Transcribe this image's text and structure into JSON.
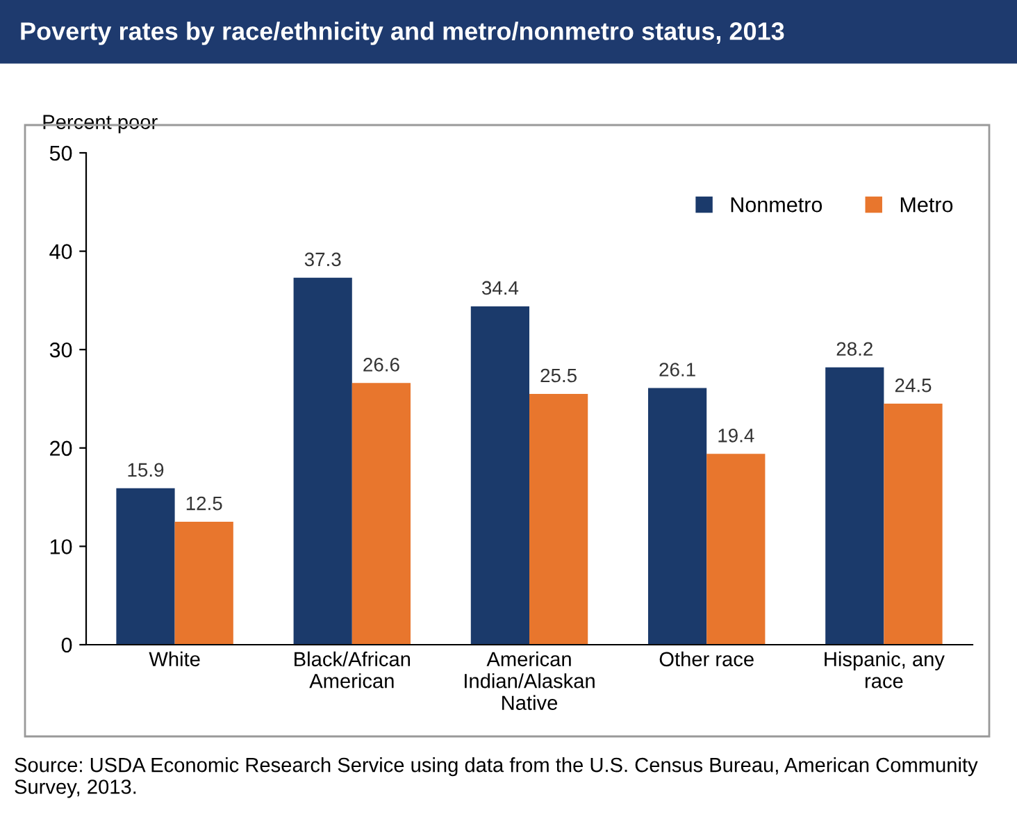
{
  "chart_data": {
    "type": "bar",
    "title": "Poverty rates by race/ethnicity and metro/nonmetro status, 2013",
    "ylabel": "Percent poor",
    "categories": [
      "White",
      "Black/African\nAmerican",
      "American\nIndian/Alaskan\nNative",
      "Other race",
      "Hispanic, any\nrace"
    ],
    "series": [
      {
        "name": "Nonmetro",
        "color": "#1b3a6b",
        "values": [
          15.9,
          37.3,
          34.4,
          26.1,
          28.2
        ]
      },
      {
        "name": "Metro",
        "color": "#e8762d",
        "values": [
          12.5,
          26.6,
          25.5,
          19.4,
          24.5
        ]
      }
    ],
    "ylim": [
      0,
      50
    ],
    "yticks": [
      0,
      10,
      20,
      30,
      40,
      50
    ],
    "grid": false,
    "legend": "top right",
    "data_labels": true,
    "annotations": [
      "Source: USDA Economic Research Service using data from the U.S. Census Bureau, American Community Survey, 2013."
    ]
  }
}
